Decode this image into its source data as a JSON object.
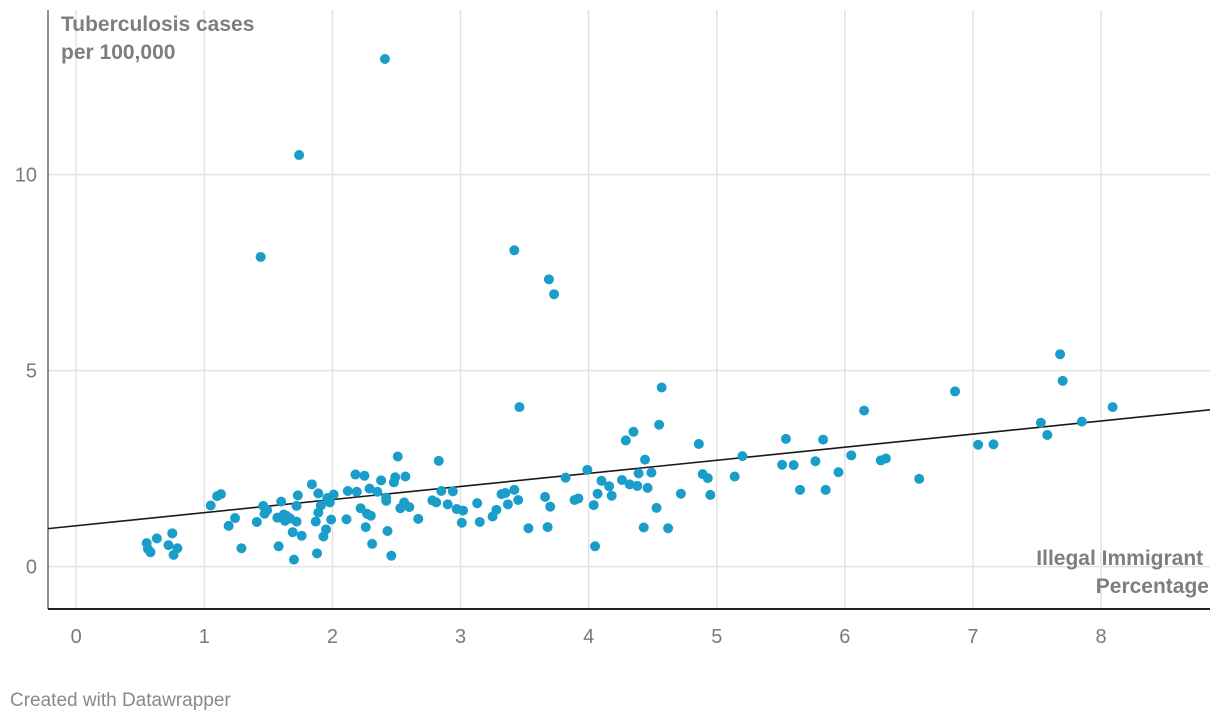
{
  "chart_data": {
    "type": "scatter",
    "title": "",
    "ylabel_lines": [
      "Tuberculosis cases",
      "per 100,000"
    ],
    "xlabel_lines": [
      "Illegal Immigrant",
      "Percentage"
    ],
    "xlim": [
      -0.22,
      8.85
    ],
    "ylim": [
      -1.08,
      14.2
    ],
    "x_ticks": [
      0,
      1,
      2,
      3,
      4,
      5,
      6,
      7,
      8
    ],
    "y_ticks": [
      0,
      5,
      10
    ],
    "grid": true,
    "point_color": "#1a9ec9",
    "trendline": {
      "color": "#1a1a1a",
      "x0": -0.22,
      "y0": 0.97,
      "x1": 8.85,
      "y1": 4.0
    },
    "points": [
      [
        0.55,
        0.6
      ],
      [
        0.56,
        0.45
      ],
      [
        0.58,
        0.37
      ],
      [
        0.63,
        0.72
      ],
      [
        0.72,
        0.55
      ],
      [
        0.75,
        0.85
      ],
      [
        0.76,
        0.3
      ],
      [
        0.79,
        0.47
      ],
      [
        1.05,
        1.56
      ],
      [
        1.1,
        1.8
      ],
      [
        1.13,
        1.85
      ],
      [
        1.19,
        1.04
      ],
      [
        1.24,
        1.24
      ],
      [
        1.29,
        0.47
      ],
      [
        1.41,
        1.14
      ],
      [
        1.44,
        7.9
      ],
      [
        1.46,
        1.55
      ],
      [
        1.47,
        1.35
      ],
      [
        1.49,
        1.44
      ],
      [
        1.57,
        1.25
      ],
      [
        1.58,
        0.52
      ],
      [
        1.6,
        1.66
      ],
      [
        1.62,
        1.33
      ],
      [
        1.63,
        1.17
      ],
      [
        1.64,
        1.3
      ],
      [
        1.67,
        1.23
      ],
      [
        1.69,
        0.88
      ],
      [
        1.7,
        0.18
      ],
      [
        1.72,
        1.15
      ],
      [
        1.72,
        1.55
      ],
      [
        1.73,
        1.82
      ],
      [
        1.74,
        10.5
      ],
      [
        1.76,
        0.79
      ],
      [
        1.84,
        2.1
      ],
      [
        1.87,
        1.15
      ],
      [
        1.88,
        0.34
      ],
      [
        1.89,
        1.38
      ],
      [
        1.89,
        1.87
      ],
      [
        1.91,
        1.56
      ],
      [
        1.93,
        0.77
      ],
      [
        1.95,
        0.95
      ],
      [
        1.96,
        1.75
      ],
      [
        1.98,
        1.64
      ],
      [
        1.99,
        1.2
      ],
      [
        2.01,
        1.84
      ],
      [
        2.11,
        1.21
      ],
      [
        2.12,
        1.93
      ],
      [
        2.18,
        2.35
      ],
      [
        2.19,
        1.91
      ],
      [
        2.22,
        1.49
      ],
      [
        2.25,
        2.32
      ],
      [
        2.26,
        1.01
      ],
      [
        2.27,
        1.35
      ],
      [
        2.29,
        1.99
      ],
      [
        2.3,
        1.3
      ],
      [
        2.31,
        0.58
      ],
      [
        2.35,
        1.91
      ],
      [
        2.38,
        2.2
      ],
      [
        2.42,
        1.76
      ],
      [
        2.42,
        1.68
      ],
      [
        2.43,
        0.91
      ],
      [
        2.46,
        0.28
      ],
      [
        2.48,
        2.15
      ],
      [
        2.49,
        2.28
      ],
      [
        2.51,
        2.81
      ],
      [
        2.53,
        1.49
      ],
      [
        2.56,
        1.64
      ],
      [
        2.57,
        2.3
      ],
      [
        2.6,
        1.52
      ],
      [
        2.41,
        12.95
      ],
      [
        2.67,
        1.22
      ],
      [
        2.78,
        1.69
      ],
      [
        2.81,
        1.64
      ],
      [
        2.83,
        2.7
      ],
      [
        2.85,
        1.93
      ],
      [
        2.9,
        1.59
      ],
      [
        2.94,
        1.92
      ],
      [
        2.97,
        1.47
      ],
      [
        3.01,
        1.12
      ],
      [
        3.02,
        1.43
      ],
      [
        3.13,
        1.62
      ],
      [
        3.15,
        1.14
      ],
      [
        3.25,
        1.28
      ],
      [
        3.28,
        1.45
      ],
      [
        3.32,
        1.85
      ],
      [
        3.35,
        1.88
      ],
      [
        3.37,
        1.59
      ],
      [
        3.42,
        8.07
      ],
      [
        3.42,
        1.96
      ],
      [
        3.45,
        1.7
      ],
      [
        3.46,
        4.07
      ],
      [
        3.53,
        0.98
      ],
      [
        3.66,
        1.78
      ],
      [
        3.68,
        1.01
      ],
      [
        3.69,
        7.33
      ],
      [
        3.7,
        1.53
      ],
      [
        3.73,
        6.95
      ],
      [
        3.82,
        2.27
      ],
      [
        3.89,
        1.7
      ],
      [
        3.92,
        1.74
      ],
      [
        3.99,
        2.47
      ],
      [
        4.04,
        1.57
      ],
      [
        4.05,
        0.52
      ],
      [
        4.07,
        1.86
      ],
      [
        4.1,
        2.19
      ],
      [
        4.16,
        2.05
      ],
      [
        4.18,
        1.81
      ],
      [
        4.26,
        2.21
      ],
      [
        4.29,
        3.22
      ],
      [
        4.32,
        2.1
      ],
      [
        4.35,
        3.44
      ],
      [
        4.38,
        2.06
      ],
      [
        4.39,
        2.38
      ],
      [
        4.43,
        1.0
      ],
      [
        4.44,
        2.73
      ],
      [
        4.46,
        2.01
      ],
      [
        4.49,
        2.4
      ],
      [
        4.53,
        1.5
      ],
      [
        4.55,
        3.62
      ],
      [
        4.57,
        4.57
      ],
      [
        4.62,
        0.98
      ],
      [
        4.72,
        1.86
      ],
      [
        4.86,
        3.13
      ],
      [
        4.89,
        2.36
      ],
      [
        4.93,
        2.26
      ],
      [
        4.95,
        1.83
      ],
      [
        5.14,
        2.3
      ],
      [
        5.2,
        2.82
      ],
      [
        5.51,
        2.6
      ],
      [
        5.54,
        3.26
      ],
      [
        5.6,
        2.59
      ],
      [
        5.65,
        1.96
      ],
      [
        5.77,
        2.69
      ],
      [
        5.83,
        3.24
      ],
      [
        5.85,
        1.96
      ],
      [
        5.95,
        2.41
      ],
      [
        6.05,
        2.84
      ],
      [
        6.15,
        3.98
      ],
      [
        6.28,
        2.71
      ],
      [
        6.32,
        2.76
      ],
      [
        6.58,
        2.24
      ],
      [
        6.86,
        4.47
      ],
      [
        7.04,
        3.11
      ],
      [
        7.16,
        3.12
      ],
      [
        7.53,
        3.67
      ],
      [
        7.58,
        3.36
      ],
      [
        7.68,
        5.42
      ],
      [
        7.7,
        4.74
      ],
      [
        7.85,
        3.7
      ],
      [
        8.09,
        4.07
      ]
    ]
  },
  "footer": {
    "credit": "Created with Datawrapper"
  }
}
